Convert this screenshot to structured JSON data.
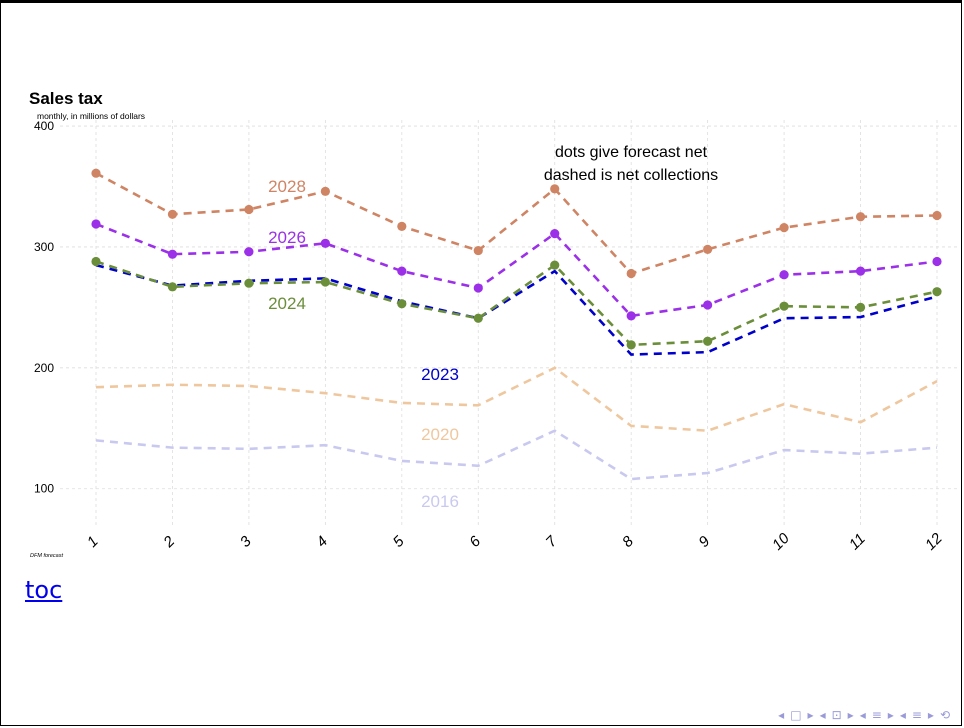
{
  "chart_data": {
    "type": "line",
    "title": "Sales tax",
    "subtitle": "monthly, in millions of dollars",
    "caption": "DFM forecast",
    "annotation": [
      "dots give forecast net",
      "dashed is net collections"
    ],
    "categories": [
      1,
      2,
      3,
      4,
      5,
      6,
      7,
      8,
      9,
      10,
      11,
      12
    ],
    "xlim": [
      1,
      12
    ],
    "ylim": [
      70,
      405
    ],
    "yticks": [
      100,
      200,
      300,
      400
    ],
    "grid": true,
    "legend": "direct labels on lines",
    "series": [
      {
        "name": "2016",
        "color": "#c9c9f0",
        "values": [
          140,
          134,
          133,
          136,
          123,
          119,
          148,
          108,
          113,
          132,
          129,
          134
        ],
        "dots": false
      },
      {
        "name": "2020",
        "color": "#efc79f",
        "values": [
          184,
          186,
          185,
          179,
          171,
          169,
          200,
          152,
          148,
          170,
          155,
          189
        ],
        "dots": false
      },
      {
        "name": "2023",
        "color": "#0000cc",
        "values": [
          285,
          268,
          272,
          274,
          255,
          241,
          280,
          211,
          213,
          241,
          242,
          259
        ],
        "dots": false
      },
      {
        "name": "2024",
        "color": "#6b8e3a",
        "values": [
          288,
          267,
          270,
          271,
          253,
          241,
          285,
          219,
          222,
          251,
          250,
          263
        ],
        "dots": true
      },
      {
        "name": "2026",
        "color": "#9b30e8",
        "values": [
          319,
          294,
          296,
          303,
          280,
          266,
          311,
          243,
          252,
          277,
          280,
          288
        ],
        "dots": true
      },
      {
        "name": "2028",
        "color": "#cf8464",
        "values": [
          361,
          327,
          331,
          346,
          317,
          297,
          348,
          278,
          298,
          316,
          325,
          326
        ],
        "dots": true
      }
    ],
    "labels": [
      {
        "series": "2028",
        "text": "2028"
      },
      {
        "series": "2026",
        "text": "2026"
      },
      {
        "series": "2024",
        "text": "2024"
      },
      {
        "series": "2023",
        "text": "2023"
      },
      {
        "series": "2020",
        "text": "2020"
      },
      {
        "series": "2016",
        "text": "2016"
      }
    ]
  },
  "toc": {
    "label": "toc"
  },
  "nav": {
    "glyphs": [
      "◂",
      "□",
      "▸",
      "◂",
      "⊡",
      "▸",
      "◂",
      "≡",
      "▸",
      "◂",
      "≡",
      "▸",
      "⟲"
    ]
  }
}
